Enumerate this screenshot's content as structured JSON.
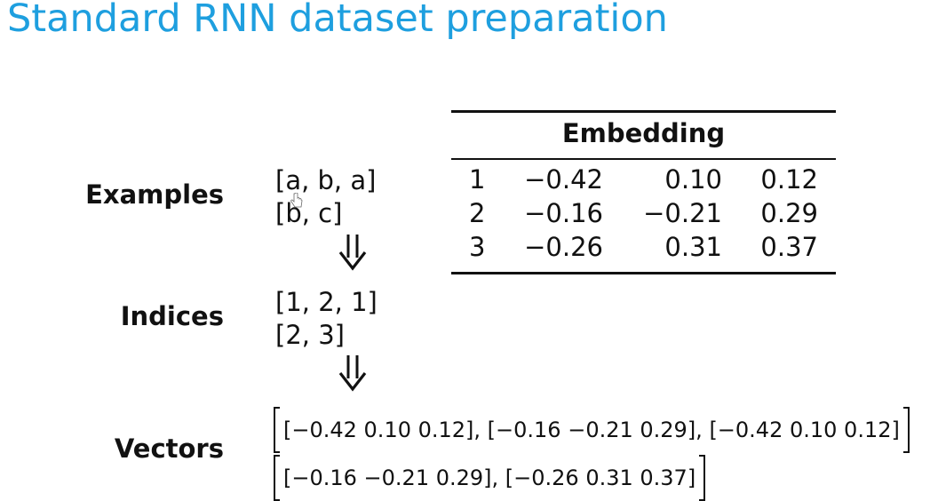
{
  "title": "Standard RNN dataset preparation",
  "labels": {
    "examples": "Examples",
    "indices": "Indices",
    "vectors": "Vectors"
  },
  "examples": [
    "[a, b, a]",
    "[b, c]"
  ],
  "indices": [
    "[1, 2, 1]",
    "[2, 3]"
  ],
  "embedding": {
    "header": "Embedding",
    "rows": [
      {
        "index": "1",
        "values": [
          "−0.42",
          "0.10",
          "0.12"
        ]
      },
      {
        "index": "2",
        "values": [
          "−0.16",
          "−0.21",
          "0.29"
        ]
      },
      {
        "index": "3",
        "values": [
          "−0.26",
          "0.31",
          "0.37"
        ]
      }
    ]
  },
  "vectors": [
    "[−0.42 0.10 0.12], [−0.16 −0.21 0.29], [−0.42 0.10 0.12]",
    "[−0.16 −0.21 0.29], [−0.26 0.31 0.37]"
  ],
  "icons": {
    "arrow": "double-down-arrow-icon",
    "cursor": "hand-cursor-icon"
  },
  "colors": {
    "title": "#1e9fdf",
    "text": "#111111"
  }
}
